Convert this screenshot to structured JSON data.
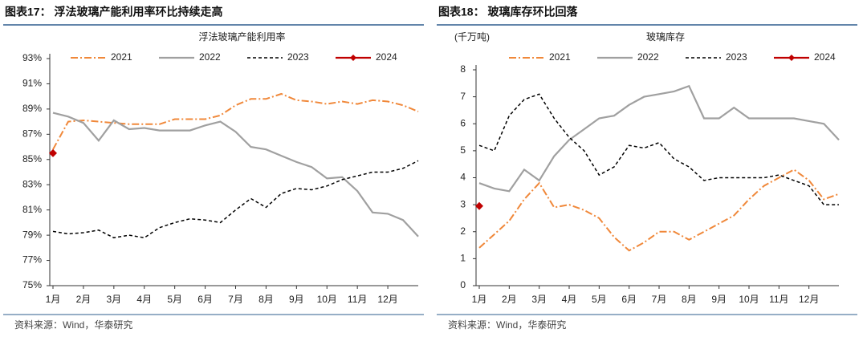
{
  "chart_data": [
    {
      "type": "line",
      "title": "图表17： 浮法玻璃产能利用率环比持续走高",
      "subtitle": "浮法玻璃产能利用率",
      "source": "资料来源：Wind，华泰研究",
      "x": [
        1,
        1.5,
        2,
        2.5,
        3,
        3.5,
        4,
        4.5,
        5,
        5.5,
        6,
        6.5,
        7,
        7.5,
        8,
        8.5,
        9,
        9.5,
        10,
        10.5,
        11,
        11.5,
        12,
        12.5,
        13
      ],
      "xlim": [
        1,
        13
      ],
      "xticks": [
        {
          "value": 1,
          "label": "1月"
        },
        {
          "value": 2,
          "label": "2月"
        },
        {
          "value": 3,
          "label": "3月"
        },
        {
          "value": 4,
          "label": "4月"
        },
        {
          "value": 5,
          "label": "5月"
        },
        {
          "value": 6,
          "label": "6月"
        },
        {
          "value": 7,
          "label": "7月"
        },
        {
          "value": 8,
          "label": "8月"
        },
        {
          "value": 9,
          "label": "9月"
        },
        {
          "value": 10,
          "label": "10月"
        },
        {
          "value": 11,
          "label": "11月"
        },
        {
          "value": 12,
          "label": "12月"
        }
      ],
      "ylim": [
        75,
        93
      ],
      "yticks": [
        {
          "value": 75,
          "label": "75%"
        },
        {
          "value": 77,
          "label": "77%"
        },
        {
          "value": 79,
          "label": "79%"
        },
        {
          "value": 81,
          "label": "81%"
        },
        {
          "value": 83,
          "label": "83%"
        },
        {
          "value": 85,
          "label": "85%"
        },
        {
          "value": 87,
          "label": "87%"
        },
        {
          "value": 89,
          "label": "89%"
        },
        {
          "value": 91,
          "label": "91%"
        },
        {
          "value": 93,
          "label": "93%"
        }
      ],
      "legend": "top",
      "series": [
        {
          "name": "2021",
          "color": "#f0883a",
          "line_style": "dash-dot",
          "values": [
            85.8,
            88.0,
            88.1,
            88.0,
            87.9,
            87.8,
            87.8,
            87.8,
            88.2,
            88.2,
            88.2,
            88.5,
            89.3,
            89.8,
            89.8,
            90.2,
            89.7,
            89.6,
            89.4,
            89.6,
            89.4,
            89.7,
            89.6,
            89.3,
            88.8
          ]
        },
        {
          "name": "2022",
          "color": "#a0a0a0",
          "line_style": "solid",
          "values": [
            88.7,
            88.4,
            87.9,
            86.5,
            88.1,
            87.4,
            87.5,
            87.3,
            87.3,
            87.3,
            87.7,
            88.0,
            87.2,
            86.0,
            85.8,
            85.3,
            84.8,
            84.4,
            83.5,
            83.6,
            82.5,
            80.8,
            80.7,
            80.2,
            78.9
          ]
        },
        {
          "name": "2023",
          "color": "#000000",
          "line_style": "dash",
          "values": [
            79.3,
            79.1,
            79.2,
            79.4,
            78.8,
            79.0,
            78.8,
            79.6,
            80.0,
            80.3,
            80.2,
            80.0,
            81.0,
            81.9,
            81.2,
            82.3,
            82.7,
            82.6,
            82.9,
            83.4,
            83.7,
            84.0,
            84.0,
            84.3,
            84.9
          ]
        },
        {
          "name": "2024",
          "color": "#c00000",
          "line_style": "solid",
          "marker": "diamond",
          "values": [
            85.5,
            null,
            null,
            null,
            null,
            null,
            null,
            null,
            null,
            null,
            null,
            null,
            null,
            null,
            null,
            null,
            null,
            null,
            null,
            null,
            null,
            null,
            null,
            null,
            null
          ]
        }
      ]
    },
    {
      "type": "line",
      "title": "图表18： 玻璃库存环比回落",
      "subtitle": "玻璃库存",
      "y_unit_label": "(千万吨)",
      "source": "资料来源：Wind，华泰研究",
      "x": [
        1,
        1.5,
        2,
        2.5,
        3,
        3.5,
        4,
        4.5,
        5,
        5.5,
        6,
        6.5,
        7,
        7.5,
        8,
        8.5,
        9,
        9.5,
        10,
        10.5,
        11,
        11.5,
        12,
        12.5,
        13
      ],
      "xlim": [
        1,
        13
      ],
      "xticks": [
        {
          "value": 1,
          "label": "1月"
        },
        {
          "value": 2,
          "label": "2月"
        },
        {
          "value": 3,
          "label": "3月"
        },
        {
          "value": 4,
          "label": "4月"
        },
        {
          "value": 5,
          "label": "5月"
        },
        {
          "value": 6,
          "label": "6月"
        },
        {
          "value": 7,
          "label": "7月"
        },
        {
          "value": 8,
          "label": "8月"
        },
        {
          "value": 9,
          "label": "9月"
        },
        {
          "value": 10,
          "label": "10月"
        },
        {
          "value": 11,
          "label": "11月"
        },
        {
          "value": 12,
          "label": "12月"
        }
      ],
      "ylim": [
        0,
        8
      ],
      "yticks": [
        0,
        1,
        2,
        3,
        4,
        5,
        6,
        7,
        8
      ],
      "legend": "top",
      "series": [
        {
          "name": "2021",
          "color": "#f0883a",
          "line_style": "dash-dot",
          "values": [
            1.4,
            1.9,
            2.4,
            3.2,
            3.8,
            2.9,
            3.0,
            2.8,
            2.5,
            1.8,
            1.3,
            1.6,
            2.0,
            2.0,
            1.7,
            2.0,
            2.3,
            2.6,
            3.2,
            3.7,
            4.0,
            4.3,
            3.9,
            3.2,
            3.4
          ]
        },
        {
          "name": "2022",
          "color": "#a0a0a0",
          "line_style": "solid",
          "values": [
            3.8,
            3.6,
            3.5,
            4.3,
            3.9,
            4.8,
            5.4,
            5.8,
            6.2,
            6.3,
            6.7,
            7.0,
            7.1,
            7.2,
            7.4,
            6.2,
            6.2,
            6.6,
            6.2,
            6.2,
            6.2,
            6.2,
            6.1,
            6.0,
            5.4
          ]
        },
        {
          "name": "2023",
          "color": "#000000",
          "line_style": "dash",
          "values": [
            5.2,
            5.0,
            6.3,
            6.9,
            7.1,
            6.2,
            5.5,
            5.0,
            4.1,
            4.4,
            5.2,
            5.1,
            5.3,
            4.7,
            4.4,
            3.9,
            4.0,
            4.0,
            4.0,
            4.0,
            4.1,
            3.9,
            3.7,
            3.0,
            3.0
          ]
        },
        {
          "name": "2024",
          "color": "#c00000",
          "line_style": "solid",
          "marker": "diamond",
          "values": [
            2.95,
            null,
            null,
            null,
            null,
            null,
            null,
            null,
            null,
            null,
            null,
            null,
            null,
            null,
            null,
            null,
            null,
            null,
            null,
            null,
            null,
            null,
            null,
            null,
            null
          ]
        }
      ]
    }
  ]
}
